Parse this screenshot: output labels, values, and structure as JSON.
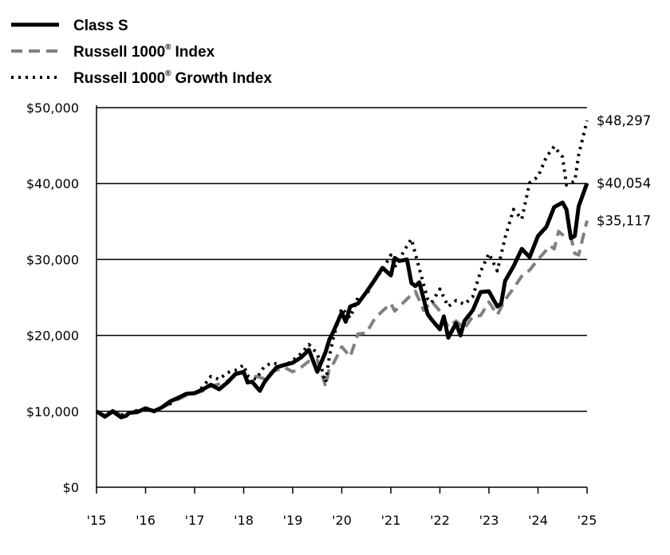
{
  "chart_data": {
    "type": "line",
    "title": "",
    "xlabel": "",
    "ylabel": "",
    "xlim": [
      2015,
      2025
    ],
    "ylim": [
      0,
      50000
    ],
    "grid": "horizontal",
    "legend_position": "top-left",
    "x_ticks": [
      2015,
      2016,
      2017,
      2018,
      2019,
      2020,
      2021,
      2022,
      2023,
      2024,
      2025
    ],
    "x_tick_labels": [
      "'15",
      "'16",
      "'17",
      "'18",
      "'19",
      "'20",
      "'21",
      "'22",
      "'23",
      "'24",
      "'25"
    ],
    "y_ticks": [
      0,
      10000,
      20000,
      30000,
      40000,
      50000
    ],
    "y_tick_labels": [
      "$0",
      "$10,000",
      "$20,000",
      "$30,000",
      "$40,000",
      "$50,000"
    ],
    "series": [
      {
        "name": "Class S",
        "legend_label": "Class S",
        "style": "solid",
        "color": "#000000",
        "end_label": "$40,054",
        "x": [
          2015.0,
          2015.17,
          2015.33,
          2015.5,
          2015.6,
          2015.67,
          2015.83,
          2016.0,
          2016.17,
          2016.33,
          2016.5,
          2016.67,
          2016.83,
          2017.0,
          2017.17,
          2017.33,
          2017.5,
          2017.67,
          2017.83,
          2018.0,
          2018.08,
          2018.17,
          2018.33,
          2018.42,
          2018.5,
          2018.67,
          2018.83,
          2019.0,
          2019.17,
          2019.33,
          2019.5,
          2019.67,
          2019.75,
          2019.83,
          2020.0,
          2020.08,
          2020.17,
          2020.33,
          2020.5,
          2020.67,
          2020.83,
          2021.0,
          2021.08,
          2021.17,
          2021.33,
          2021.42,
          2021.5,
          2021.58,
          2021.75,
          2021.83,
          2022.0,
          2022.08,
          2022.17,
          2022.33,
          2022.42,
          2022.5,
          2022.67,
          2022.83,
          2023.0,
          2023.17,
          2023.25,
          2023.33,
          2023.5,
          2023.67,
          2023.83,
          2024.0,
          2024.17,
          2024.33,
          2024.5,
          2024.58,
          2024.67,
          2024.75,
          2024.83,
          2025.0
        ],
        "y": [
          10000,
          9300,
          10000,
          9200,
          9400,
          9800,
          9900,
          10400,
          10000,
          10500,
          11300,
          11800,
          12300,
          12400,
          12900,
          13500,
          12900,
          13800,
          14900,
          15200,
          13800,
          13900,
          12700,
          13800,
          14500,
          15800,
          16100,
          16400,
          17100,
          18100,
          15200,
          17800,
          19500,
          20500,
          23000,
          21800,
          23800,
          24200,
          25700,
          27300,
          28900,
          27900,
          30200,
          29800,
          30000,
          26900,
          26500,
          27000,
          22800,
          22100,
          20800,
          22500,
          19700,
          21600,
          20000,
          21900,
          23300,
          25700,
          25800,
          23800,
          24200,
          27200,
          29100,
          31400,
          30300,
          33100,
          34300,
          36900,
          37500,
          36600,
          32800,
          33100,
          37000,
          40054
        ]
      },
      {
        "name": "Russell 1000 Index",
        "legend_label": "Russell 1000",
        "legend_label_suffix": "Index",
        "style": "dashed",
        "color": "#808080",
        "end_label": "$35,117",
        "x": [
          2015.0,
          2015.17,
          2015.33,
          2015.5,
          2015.67,
          2015.83,
          2016.0,
          2016.17,
          2016.33,
          2016.5,
          2016.67,
          2016.83,
          2017.0,
          2017.17,
          2017.33,
          2017.5,
          2017.67,
          2017.83,
          2018.0,
          2018.08,
          2018.25,
          2018.42,
          2018.58,
          2018.83,
          2019.0,
          2019.17,
          2019.33,
          2019.5,
          2019.67,
          2019.75,
          2019.83,
          2020.0,
          2020.17,
          2020.33,
          2020.5,
          2020.67,
          2020.83,
          2021.0,
          2021.08,
          2021.33,
          2021.5,
          2021.67,
          2021.83,
          2022.0,
          2022.17,
          2022.33,
          2022.5,
          2022.67,
          2022.83,
          2023.0,
          2023.17,
          2023.33,
          2023.5,
          2023.67,
          2023.83,
          2024.0,
          2024.25,
          2024.33,
          2024.42,
          2024.58,
          2024.67,
          2024.75,
          2024.83,
          2025.0
        ],
        "y": [
          10000,
          9400,
          10100,
          9500,
          9800,
          10100,
          10300,
          10100,
          10500,
          11000,
          11600,
          12100,
          12300,
          12700,
          13300,
          13600,
          14000,
          14700,
          15000,
          14100,
          14600,
          14300,
          15200,
          15800,
          15200,
          15800,
          16600,
          16800,
          13300,
          15800,
          16300,
          18500,
          17200,
          20200,
          20300,
          22200,
          23200,
          24200,
          23200,
          24800,
          25800,
          23300,
          24500,
          23200,
          21100,
          21900,
          20900,
          22500,
          22600,
          24400,
          22700,
          24700,
          26200,
          27800,
          28600,
          30000,
          31800,
          31400,
          33700,
          32800,
          33000,
          30800,
          30600,
          35117
        ]
      },
      {
        "name": "Russell 1000 Growth Index",
        "legend_label": "Russell 1000",
        "legend_label_suffix": "Growth Index",
        "style": "dotted",
        "color": "#000000",
        "end_label": "$48,297",
        "x": [
          2015.0,
          2015.17,
          2015.33,
          2015.5,
          2015.67,
          2015.83,
          2016.0,
          2016.17,
          2016.33,
          2016.5,
          2016.67,
          2016.83,
          2017.0,
          2017.17,
          2017.33,
          2017.5,
          2017.67,
          2017.83,
          2018.0,
          2018.08,
          2018.25,
          2018.42,
          2018.58,
          2018.83,
          2019.0,
          2019.17,
          2019.33,
          2019.5,
          2019.67,
          2019.75,
          2019.83,
          2020.0,
          2020.17,
          2020.33,
          2020.5,
          2020.67,
          2020.83,
          2021.0,
          2021.08,
          2021.33,
          2021.42,
          2021.58,
          2021.75,
          2021.83,
          2022.0,
          2022.17,
          2022.33,
          2022.5,
          2022.67,
          2022.83,
          2023.0,
          2023.17,
          2023.33,
          2023.5,
          2023.67,
          2023.83,
          2024.0,
          2024.17,
          2024.33,
          2024.5,
          2024.58,
          2024.75,
          2024.83,
          2025.0
        ],
        "y": [
          10000,
          9400,
          10100,
          9500,
          9800,
          10100,
          10300,
          10100,
          10500,
          11000,
          11800,
          12300,
          12400,
          13200,
          14600,
          14200,
          15100,
          15400,
          16100,
          14700,
          14200,
          15900,
          16400,
          16000,
          16700,
          17600,
          18800,
          17600,
          13800,
          17300,
          19700,
          23600,
          22300,
          25000,
          25300,
          27400,
          28600,
          30600,
          29000,
          31800,
          32700,
          28800,
          24800,
          24300,
          26100,
          23800,
          24600,
          24100,
          25100,
          28400,
          30800,
          28500,
          32900,
          36600,
          35300,
          40100,
          40900,
          43500,
          44900,
          43500,
          39800,
          40300,
          43800,
          48297
        ]
      }
    ]
  }
}
